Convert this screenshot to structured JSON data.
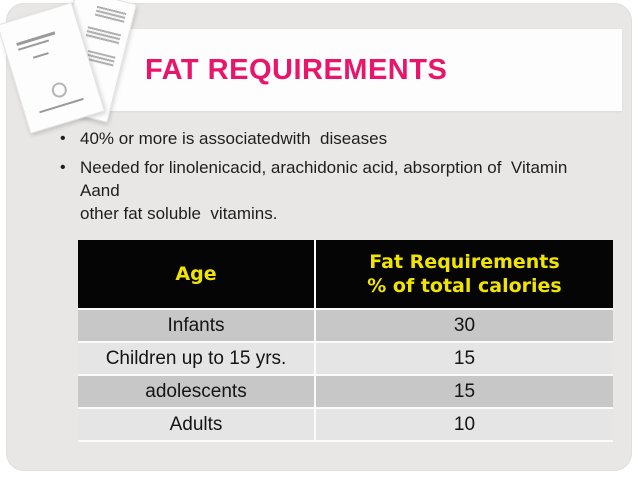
{
  "slide": {
    "title": "FAT REQUIREMENTS",
    "bullets": [
      "40% or more is associatedwith  diseases",
      "Needed for linolenicacid, arachidonic acid, absorption of  Vitamin Aand\nother fat soluble  vitamins."
    ]
  },
  "table": {
    "col1_header": "Age",
    "col2_header_line1": "Fat Requirements",
    "col2_header_line2": "% of total calories",
    "rows": [
      {
        "age": "Infants",
        "value": "30"
      },
      {
        "age": "Children up to 15 yrs.",
        "value": "15"
      },
      {
        "age": "adolescents",
        "value": "15"
      },
      {
        "age": "Adults",
        "value": "10"
      }
    ]
  },
  "colors": {
    "title_accent": "#e9156b",
    "header_bg": "#050505",
    "header_text": "#f1e500",
    "row_dark": "#c7c7c7",
    "row_light": "#e5e5e5",
    "slide_bg": "#e8e7e5",
    "banner_bg": "#fdfdfd"
  },
  "decor": {
    "papers_icon": "stacked-manual-booklets"
  }
}
